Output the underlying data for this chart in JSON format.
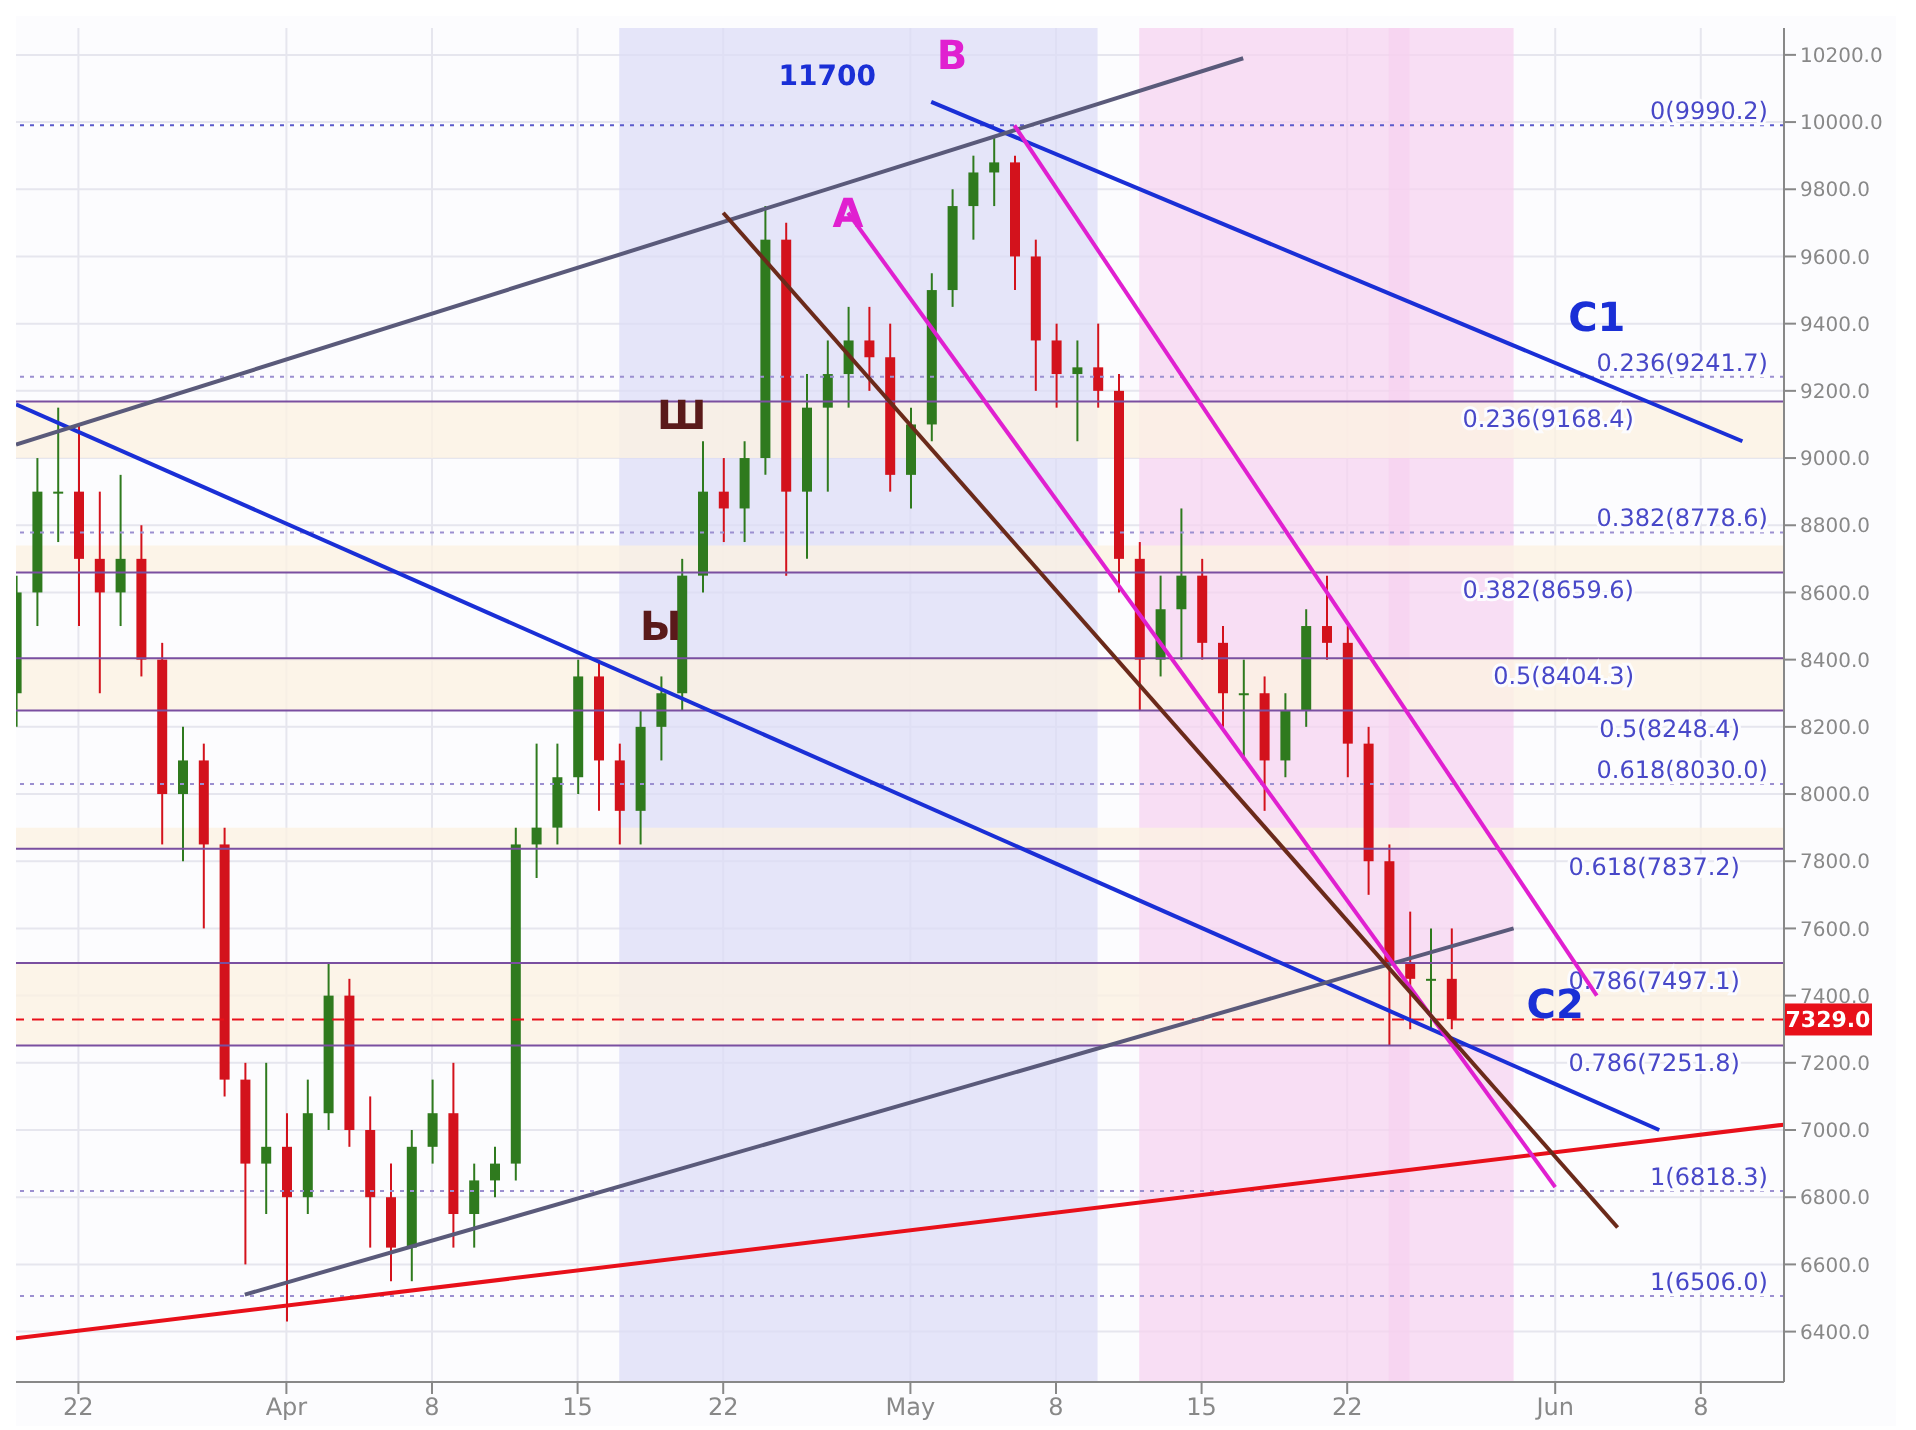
{
  "chart_data": {
    "type": "candlestick",
    "x": [
      "--03-19",
      "--03-20",
      "--03-21",
      "--03-22",
      "--03-23",
      "--03-24",
      "--03-25",
      "--03-26",
      "--03-27",
      "--03-28",
      "--03-29",
      "--03-30",
      "--03-31",
      "--04-01",
      "--04-02",
      "--04-03",
      "--04-04",
      "--04-05",
      "--04-06",
      "--04-07",
      "--04-08",
      "--04-09",
      "--04-10",
      "--04-11",
      "--04-12",
      "--04-13",
      "--04-14",
      "--04-15",
      "--04-16",
      "--04-17",
      "--04-18",
      "--04-19",
      "--04-20",
      "--04-21",
      "--04-22",
      "--04-23",
      "--04-24",
      "--04-25",
      "--04-26",
      "--04-27",
      "--04-28",
      "--04-29",
      "--04-30",
      "--05-01",
      "--05-02",
      "--05-03",
      "--05-04",
      "--05-05",
      "--05-06",
      "--05-07",
      "--05-08",
      "--05-09",
      "--05-10",
      "--05-11",
      "--05-12",
      "--05-13",
      "--05-14",
      "--05-15",
      "--05-16",
      "--05-17",
      "--05-18",
      "--05-19",
      "--05-20",
      "--05-21",
      "--05-22",
      "--05-23",
      "--05-24",
      "--05-25",
      "--05-26",
      "--05-27"
    ],
    "ohlc": [
      [
        8300,
        8650,
        8200,
        8600
      ],
      [
        8600,
        9000,
        8500,
        8900
      ],
      [
        8900,
        9150,
        8750,
        8900
      ],
      [
        8900,
        9100,
        8500,
        8700
      ],
      [
        8700,
        8900,
        8300,
        8600
      ],
      [
        8600,
        8950,
        8500,
        8700
      ],
      [
        8700,
        8800,
        8350,
        8400
      ],
      [
        8400,
        8450,
        7850,
        8000
      ],
      [
        8000,
        8200,
        7800,
        8100
      ],
      [
        8100,
        8150,
        7600,
        7850
      ],
      [
        7850,
        7900,
        7100,
        7150
      ],
      [
        7150,
        7200,
        6600,
        6900
      ],
      [
        6900,
        7200,
        6750,
        6950
      ],
      [
        6950,
        7050,
        6430,
        6800
      ],
      [
        6800,
        7150,
        6750,
        7050
      ],
      [
        7050,
        7500,
        7000,
        7400
      ],
      [
        7400,
        7450,
        6950,
        7000
      ],
      [
        7000,
        7100,
        6650,
        6800
      ],
      [
        6800,
        6900,
        6550,
        6650
      ],
      [
        6650,
        7000,
        6550,
        6950
      ],
      [
        6950,
        7150,
        6900,
        7050
      ],
      [
        7050,
        7200,
        6650,
        6750
      ],
      [
        6750,
        6900,
        6650,
        6850
      ],
      [
        6850,
        6950,
        6800,
        6900
      ],
      [
        6900,
        7900,
        6850,
        7850
      ],
      [
        7850,
        8150,
        7750,
        7900
      ],
      [
        7900,
        8150,
        7850,
        8050
      ],
      [
        8050,
        8400,
        8000,
        8350
      ],
      [
        8350,
        8400,
        7950,
        8100
      ],
      [
        8100,
        8150,
        7850,
        7950
      ],
      [
        7950,
        8250,
        7850,
        8200
      ],
      [
        8200,
        8350,
        8100,
        8300
      ],
      [
        8300,
        8700,
        8250,
        8650
      ],
      [
        8650,
        9050,
        8600,
        8900
      ],
      [
        8900,
        9000,
        8750,
        8850
      ],
      [
        8850,
        9050,
        8750,
        9000
      ],
      [
        9000,
        9750,
        8950,
        9650
      ],
      [
        9650,
        9700,
        8650,
        8900
      ],
      [
        8900,
        9250,
        8700,
        9150
      ],
      [
        9150,
        9350,
        8900,
        9250
      ],
      [
        9250,
        9450,
        9150,
        9350
      ],
      [
        9350,
        9450,
        9200,
        9300
      ],
      [
        9300,
        9400,
        8900,
        8950
      ],
      [
        8950,
        9150,
        8850,
        9100
      ],
      [
        9100,
        9550,
        9050,
        9500
      ],
      [
        9500,
        9800,
        9450,
        9750
      ],
      [
        9750,
        9900,
        9650,
        9850
      ],
      [
        9850,
        9960,
        9750,
        9880
      ],
      [
        9880,
        9900,
        9500,
        9600
      ],
      [
        9600,
        9650,
        9200,
        9350
      ],
      [
        9350,
        9400,
        9150,
        9250
      ],
      [
        9250,
        9350,
        9050,
        9270
      ],
      [
        9270,
        9400,
        9150,
        9200
      ],
      [
        9200,
        9250,
        8600,
        8700
      ],
      [
        8700,
        8750,
        8250,
        8400
      ],
      [
        8400,
        8650,
        8350,
        8550
      ],
      [
        8550,
        8850,
        8400,
        8650
      ],
      [
        8650,
        8700,
        8400,
        8450
      ],
      [
        8450,
        8500,
        8200,
        8300
      ],
      [
        8300,
        8400,
        8100,
        8300
      ],
      [
        8300,
        8350,
        7950,
        8100
      ],
      [
        8100,
        8300,
        8050,
        8250
      ],
      [
        8250,
        8550,
        8200,
        8500
      ],
      [
        8500,
        8650,
        8400,
        8450
      ],
      [
        8450,
        8500,
        8050,
        8150
      ],
      [
        8150,
        8200,
        7700,
        7800
      ],
      [
        7800,
        7850,
        7250,
        7500
      ],
      [
        7500,
        7650,
        7300,
        7450
      ],
      [
        7450,
        7600,
        7300,
        7450
      ],
      [
        7450,
        7600,
        7300,
        7330
      ]
    ],
    "series": [
      {
        "type": "line",
        "color": "#1a2fd6",
        "x": [
          "--05-02",
          "--06-10"
        ],
        "values": [
          10060,
          9050
        ]
      },
      {
        "type": "line",
        "color": "#1a2fd6",
        "x": [
          "--03-19",
          "--06-06"
        ],
        "values": [
          9160,
          7000
        ]
      },
      {
        "type": "line",
        "color": "#e8101a",
        "x": [
          "--03-19",
          "--06-12"
        ],
        "values": [
          6380,
          7016
        ]
      },
      {
        "type": "line",
        "color": "#5a5a7a",
        "x": [
          "--03-19",
          "--05-17"
        ],
        "values": [
          9040,
          10190
        ]
      },
      {
        "type": "line",
        "color": "#5a5a7a",
        "x": [
          "--03-30",
          "--05-30"
        ],
        "values": [
          6510,
          7600
        ]
      },
      {
        "type": "line",
        "color": "#e020d0",
        "x": [
          "--05-06",
          "--06-03"
        ],
        "values": [
          9990,
          7400
        ]
      },
      {
        "type": "line",
        "color": "#e020d0",
        "x": [
          "--04-28",
          "--06-01"
        ],
        "values": [
          9730,
          6830
        ]
      },
      {
        "type": "line",
        "color": "#6b2a1a",
        "x": [
          "--04-22",
          "--06-04"
        ],
        "values": [
          9730,
          6710
        ]
      }
    ],
    "xlim": [
      "--03-19",
      "--06-12"
    ],
    "xticks": [
      {
        "value": "--03-22",
        "label": "22"
      },
      {
        "value": "--04-01",
        "label": "Apr"
      },
      {
        "value": "--04-08",
        "label": "8"
      },
      {
        "value": "--04-15",
        "label": "15"
      },
      {
        "value": "--04-22",
        "label": "22"
      },
      {
        "value": "--05-01",
        "label": "May"
      },
      {
        "value": "--05-08",
        "label": "8"
      },
      {
        "value": "--05-15",
        "label": "15"
      },
      {
        "value": "--05-22",
        "label": "22"
      },
      {
        "value": "--06-01",
        "label": "Jun"
      },
      {
        "value": "--06-08",
        "label": "8"
      }
    ],
    "ylim": [
      6250,
      10280
    ],
    "yticks": [
      {
        "value": 6400,
        "label": "6400.0"
      },
      {
        "value": 6600,
        "label": "6600.0"
      },
      {
        "value": 6800,
        "label": "6800.0"
      },
      {
        "value": 7000,
        "label": "7000.0"
      },
      {
        "value": 7200,
        "label": "7200.0"
      },
      {
        "value": 7400,
        "label": "7400.0"
      },
      {
        "value": 7600,
        "label": "7600.0"
      },
      {
        "value": 7800,
        "label": "7800.0"
      },
      {
        "value": 8000,
        "label": "8000.0"
      },
      {
        "value": 8200,
        "label": "8200.0"
      },
      {
        "value": 8400,
        "label": "8400.0"
      },
      {
        "value": 8600,
        "label": "8600.0"
      },
      {
        "value": 8800,
        "label": "8800.0"
      },
      {
        "value": 9000,
        "label": "9000.0"
      },
      {
        "value": 9200,
        "label": "9200.0"
      },
      {
        "value": 9400,
        "label": "9400.0"
      },
      {
        "value": 9600,
        "label": "9600.0"
      },
      {
        "value": 9800,
        "label": "9800.0"
      },
      {
        "value": 10000,
        "label": "10000.0"
      },
      {
        "value": 10200,
        "label": "10200.0"
      }
    ],
    "grid": true,
    "ref_lines": [
      {
        "axis": "y",
        "value": 9990.2,
        "label": "0(9990.2)",
        "color": "#5a5acc",
        "line_style": "dotted"
      },
      {
        "axis": "y",
        "value": 9241.7,
        "label": "0.236(9241.7)",
        "color": "#9b8fd0",
        "line_style": "dotted"
      },
      {
        "axis": "y",
        "value": 9168.4,
        "label": "0.236(9168.4)",
        "color": "#7a4fa0",
        "line_style": "solid"
      },
      {
        "axis": "y",
        "value": 8778.6,
        "label": "0.382(8778.6)",
        "color": "#9b8fd0",
        "line_style": "dotted"
      },
      {
        "axis": "y",
        "value": 8659.6,
        "label": "0.382(8659.6)",
        "color": "#7a4fa0",
        "line_style": "solid"
      },
      {
        "axis": "y",
        "value": 8404.3,
        "label": "0.5(8404.3)",
        "color": "#7a4fa0",
        "line_style": "solid"
      },
      {
        "axis": "y",
        "value": 8248.4,
        "label": "0.5(8248.4)",
        "color": "#7a4fa0",
        "line_style": "solid"
      },
      {
        "axis": "y",
        "value": 8030.0,
        "label": "0.618(8030.0)",
        "color": "#9b8fd0",
        "line_style": "dotted"
      },
      {
        "axis": "y",
        "value": 7837.2,
        "label": "0.618(7837.2)",
        "color": "#7a4fa0",
        "line_style": "solid"
      },
      {
        "axis": "y",
        "value": 7497.1,
        "label": "0.786(7497.1)",
        "color": "#7a4fa0",
        "line_style": "solid"
      },
      {
        "axis": "y",
        "value": 7251.8,
        "label": "0.786(7251.8)",
        "color": "#7a4fa0",
        "line_style": "solid"
      },
      {
        "axis": "y",
        "value": 6818.3,
        "label": "1(6818.3)",
        "color": "#9b8fd0",
        "line_style": "dotted"
      },
      {
        "axis": "y",
        "value": 6506.0,
        "label": "1(6506.0)",
        "color": "#9b8fd0",
        "line_style": "dotted"
      },
      {
        "axis": "y",
        "value": 7329.0,
        "label": "7329.0",
        "color": "#e8101a",
        "line_style": "dashed"
      }
    ],
    "bands": [
      {
        "axis": "x",
        "from": "--04-17",
        "to": "--05-10",
        "color": "#dcdcf6"
      },
      {
        "axis": "x",
        "from": "--05-12",
        "to": "--05-25",
        "color": "#f6d2f0"
      },
      {
        "axis": "x",
        "from": "--05-24",
        "to": "--05-30",
        "color": "#f6d2f0"
      },
      {
        "axis": "y",
        "from": 9000,
        "to": 9168.4,
        "color": "#fbf1e2"
      },
      {
        "axis": "y",
        "from": 8659.6,
        "to": 8740,
        "color": "#fbf1e2"
      },
      {
        "axis": "y",
        "from": 8248.4,
        "to": 8404.3,
        "color": "#fbf1e2"
      },
      {
        "axis": "y",
        "from": 7837.2,
        "to": 7900,
        "color": "#fbf1e2"
      },
      {
        "axis": "y",
        "from": 7251.8,
        "to": 7497.1,
        "color": "#fbf1e2"
      }
    ],
    "annotations": [
      "11700",
      "B",
      {
        "text": "A",
        "x": "--04-28",
        "y": 9730
      },
      "Ш",
      "Ы",
      "C1",
      {
        "text": "C2",
        "x": "--06-01",
        "y": 7250
      }
    ]
  }
}
